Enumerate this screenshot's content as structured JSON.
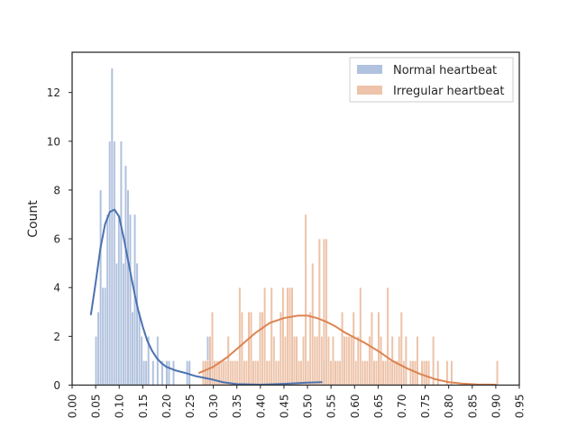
{
  "chart_data": {
    "type": "histogram",
    "title": "",
    "xlabel": "",
    "ylabel": "Count",
    "xlim": [
      0.0,
      0.95
    ],
    "ylim": [
      0,
      13.65
    ],
    "grid": false,
    "legend_position": "top-right",
    "x_ticks": [
      "0.00",
      "0.05",
      "0.10",
      "0.15",
      "0.20",
      "0.25",
      "0.30",
      "0.35",
      "0.40",
      "0.45",
      "0.50",
      "0.55",
      "0.60",
      "0.65",
      "0.70",
      "0.75",
      "0.80",
      "0.85",
      "0.90",
      "0.95"
    ],
    "y_ticks": [
      "0",
      "2",
      "4",
      "6",
      "8",
      "10",
      "12"
    ],
    "series": [
      {
        "name": "Normal heartbeat",
        "color": "#4c72b0",
        "fill": "#a3b7d8",
        "bin_width": 0.00484,
        "bins": [
          [
            0.0485,
            2
          ],
          [
            0.0533,
            3
          ],
          [
            0.0582,
            8
          ],
          [
            0.063,
            4
          ],
          [
            0.0679,
            4
          ],
          [
            0.0727,
            7
          ],
          [
            0.0775,
            10
          ],
          [
            0.0824,
            13
          ],
          [
            0.0872,
            10
          ],
          [
            0.0921,
            5
          ],
          [
            0.0969,
            7
          ],
          [
            0.1017,
            10
          ],
          [
            0.1066,
            5
          ],
          [
            0.1114,
            9
          ],
          [
            0.1163,
            8
          ],
          [
            0.1211,
            7
          ],
          [
            0.1259,
            3
          ],
          [
            0.1308,
            7
          ],
          [
            0.1356,
            5
          ],
          [
            0.1405,
            3
          ],
          [
            0.1453,
            2
          ],
          [
            0.1501,
            1
          ],
          [
            0.155,
            1
          ],
          [
            0.1598,
            2
          ],
          [
            0.1695,
            1
          ],
          [
            0.1792,
            2
          ],
          [
            0.1889,
            1
          ],
          [
            0.1986,
            1
          ],
          [
            0.2034,
            1
          ],
          [
            0.2131,
            1
          ],
          [
            0.2422,
            1
          ],
          [
            0.247,
            1
          ],
          [
            0.2858,
            2
          ],
          [
            0.2906,
            1
          ],
          [
            0.5331,
            1
          ]
        ],
        "kde": {
          "x": [
            0.04,
            0.05,
            0.06,
            0.07,
            0.08,
            0.09,
            0.1,
            0.11,
            0.12,
            0.13,
            0.14,
            0.15,
            0.16,
            0.17,
            0.18,
            0.19,
            0.2,
            0.22,
            0.24,
            0.26,
            0.28,
            0.3,
            0.32,
            0.35,
            0.4,
            0.45,
            0.5,
            0.53
          ],
          "y": [
            2.9,
            4.2,
            5.6,
            6.6,
            7.1,
            7.2,
            6.9,
            6.0,
            5.0,
            4.0,
            3.1,
            2.4,
            1.8,
            1.4,
            1.1,
            0.9,
            0.75,
            0.6,
            0.5,
            0.38,
            0.3,
            0.22,
            0.12,
            0.04,
            0.02,
            0.05,
            0.1,
            0.12
          ]
        }
      },
      {
        "name": "Irregular heartbeat",
        "color": "#dd8452",
        "fill": "#eab89a",
        "bin_width": 0.00484,
        "bins": [
          [
            0.2762,
            1
          ],
          [
            0.281,
            1
          ],
          [
            0.2858,
            1
          ],
          [
            0.2906,
            2
          ],
          [
            0.2955,
            3
          ],
          [
            0.3003,
            1
          ],
          [
            0.3052,
            1
          ],
          [
            0.31,
            1
          ],
          [
            0.3148,
            1
          ],
          [
            0.3197,
            1
          ],
          [
            0.3245,
            1
          ],
          [
            0.3294,
            2
          ],
          [
            0.3342,
            1
          ],
          [
            0.339,
            1
          ],
          [
            0.3439,
            1
          ],
          [
            0.3487,
            1
          ],
          [
            0.3536,
            4
          ],
          [
            0.3584,
            3
          ],
          [
            0.3632,
            1
          ],
          [
            0.3681,
            1
          ],
          [
            0.3729,
            3
          ],
          [
            0.3778,
            3
          ],
          [
            0.3826,
            1
          ],
          [
            0.3875,
            1
          ],
          [
            0.3923,
            1
          ],
          [
            0.3971,
            3
          ],
          [
            0.402,
            3
          ],
          [
            0.4068,
            4
          ],
          [
            0.4117,
            1
          ],
          [
            0.4165,
            1
          ],
          [
            0.4213,
            4
          ],
          [
            0.4262,
            2
          ],
          [
            0.431,
            1
          ],
          [
            0.4359,
            1
          ],
          [
            0.4407,
            3
          ],
          [
            0.4455,
            4
          ],
          [
            0.4504,
            2
          ],
          [
            0.4552,
            4
          ],
          [
            0.4601,
            4
          ],
          [
            0.4649,
            4
          ],
          [
            0.4697,
            2
          ],
          [
            0.4746,
            2
          ],
          [
            0.4794,
            1
          ],
          [
            0.4843,
            1
          ],
          [
            0.4891,
            2
          ],
          [
            0.4939,
            7
          ],
          [
            0.4988,
            1
          ],
          [
            0.5036,
            3
          ],
          [
            0.5085,
            5
          ],
          [
            0.5133,
            2
          ],
          [
            0.5181,
            2
          ],
          [
            0.523,
            6
          ],
          [
            0.5278,
            2
          ],
          [
            0.5327,
            6
          ],
          [
            0.5375,
            6
          ],
          [
            0.5424,
            2
          ],
          [
            0.5472,
            1
          ],
          [
            0.552,
            2
          ],
          [
            0.5569,
            1
          ],
          [
            0.5617,
            1
          ],
          [
            0.5666,
            1
          ],
          [
            0.5714,
            3
          ],
          [
            0.5762,
            2
          ],
          [
            0.5811,
            2
          ],
          [
            0.5859,
            2
          ],
          [
            0.5908,
            2
          ],
          [
            0.5956,
            3
          ],
          [
            0.6004,
            1
          ],
          [
            0.6053,
            2
          ],
          [
            0.6101,
            4
          ],
          [
            0.615,
            1
          ],
          [
            0.6198,
            1
          ],
          [
            0.6246,
            1
          ],
          [
            0.6295,
            2
          ],
          [
            0.6343,
            3
          ],
          [
            0.6392,
            1
          ],
          [
            0.644,
            1
          ],
          [
            0.6488,
            3
          ],
          [
            0.6537,
            2
          ],
          [
            0.6585,
            1
          ],
          [
            0.6634,
            1
          ],
          [
            0.6682,
            4
          ],
          [
            0.673,
            1
          ],
          [
            0.6779,
            2
          ],
          [
            0.6827,
            1
          ],
          [
            0.6876,
            1
          ],
          [
            0.6924,
            2
          ],
          [
            0.6972,
            3
          ],
          [
            0.7021,
            1
          ],
          [
            0.7069,
            2
          ],
          [
            0.7166,
            1
          ],
          [
            0.7214,
            1
          ],
          [
            0.7263,
            1
          ],
          [
            0.7311,
            2
          ],
          [
            0.7408,
            1
          ],
          [
            0.7457,
            1
          ],
          [
            0.7505,
            1
          ],
          [
            0.7553,
            1
          ],
          [
            0.765,
            2
          ],
          [
            0.7747,
            1
          ],
          [
            0.7941,
            1
          ],
          [
            0.8038,
            1
          ],
          [
            0.9008,
            1
          ]
        ],
        "kde": {
          "x": [
            0.27,
            0.3,
            0.33,
            0.36,
            0.39,
            0.42,
            0.45,
            0.48,
            0.5,
            0.52,
            0.54,
            0.56,
            0.58,
            0.6,
            0.62,
            0.65,
            0.68,
            0.71,
            0.74,
            0.77,
            0.8,
            0.83,
            0.86,
            0.9
          ],
          "y": [
            0.5,
            0.75,
            1.15,
            1.65,
            2.15,
            2.55,
            2.75,
            2.85,
            2.85,
            2.75,
            2.6,
            2.4,
            2.15,
            1.95,
            1.75,
            1.4,
            1.0,
            0.7,
            0.45,
            0.25,
            0.12,
            0.06,
            0.03,
            0.02
          ]
        }
      }
    ]
  }
}
